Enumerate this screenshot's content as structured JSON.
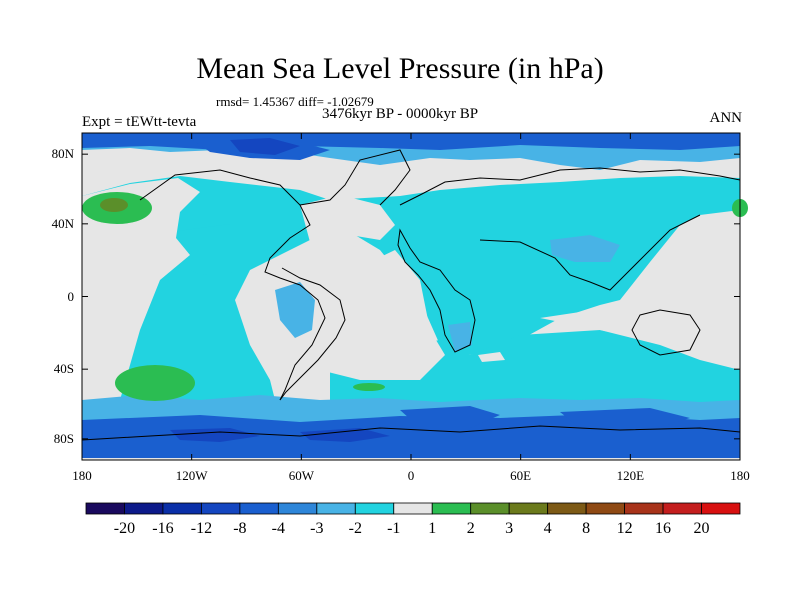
{
  "title": "Mean Sea Level Pressure (in hPa)",
  "stats": "rmsd= 1.45367  diff= -1.02679",
  "subtitle": "3476kyr BP - 0000kyr BP",
  "expt": "Expt = tEWtt-tevta",
  "season": "ANN",
  "lat_ticks": [
    {
      "label": "80N",
      "value": 80
    },
    {
      "label": "40N",
      "value": 40
    },
    {
      "label": "0",
      "value": 0
    },
    {
      "label": "40S",
      "value": -40
    },
    {
      "label": "80S",
      "value": -80
    }
  ],
  "lon_ticks": [
    {
      "label": "180",
      "value": -180
    },
    {
      "label": "120W",
      "value": -120
    },
    {
      "label": "60W",
      "value": -60
    },
    {
      "label": "0",
      "value": 0
    },
    {
      "label": "60E",
      "value": 60
    },
    {
      "label": "120E",
      "value": 120
    },
    {
      "label": "180",
      "value": 180
    }
  ],
  "colorbar": {
    "colors": [
      "#1a0a5e",
      "#0d1a8a",
      "#0a2fa8",
      "#1446c0",
      "#1a5fcf",
      "#2e86d9",
      "#48b3e6",
      "#22d3e0",
      "#e6e6e6",
      "#2bbd52",
      "#5b8f2a",
      "#6b7a1c",
      "#7d5a16",
      "#8f4a14",
      "#a8331a",
      "#c41e1e",
      "#d81010"
    ],
    "labels": [
      "-20",
      "-16",
      "-12",
      "-8",
      "-4",
      "-3",
      "-2",
      "-1",
      "1",
      "2",
      "3",
      "4",
      "8",
      "12",
      "16",
      "20"
    ]
  },
  "map_colors": {
    "background": "#e6e6e6",
    "light_blue": "#22d3e0",
    "mid_blue": "#48b3e6",
    "blue": "#2e86d9",
    "dark_blue": "#1a5fcf",
    "deep_blue": "#1446c0",
    "green": "#2bbd52",
    "olive": "#5b8f2a",
    "coast": "#000000"
  }
}
